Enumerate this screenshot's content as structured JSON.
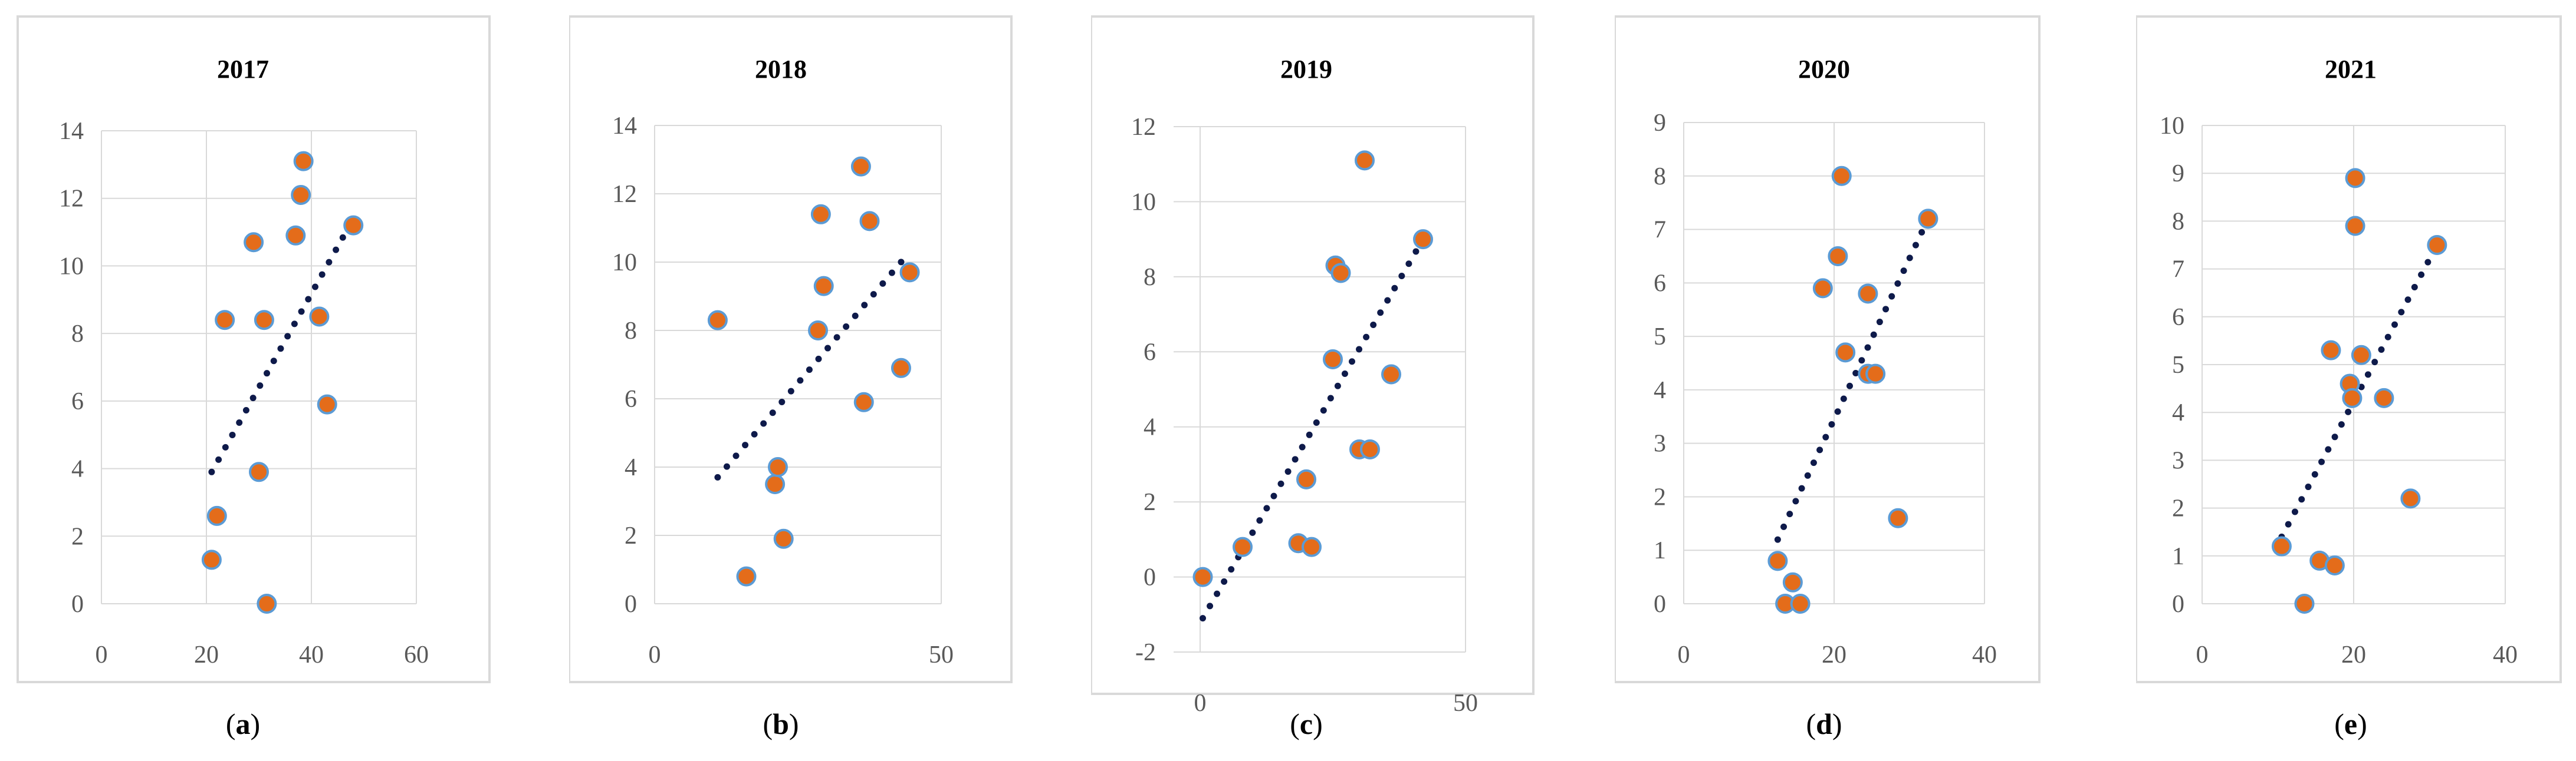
{
  "colors": {
    "point_fill": "#E46C1A",
    "point_stroke": "#5B9BD5",
    "trend": "#0E1A4A",
    "grid": "#D9D9D9",
    "frame": "#D9D9D9",
    "tick_text": "#595959"
  },
  "chart_data": [
    {
      "type": "scatter",
      "title": "2017",
      "caption": "a",
      "xlim": [
        0,
        60
      ],
      "xticks": [
        0,
        20,
        40,
        60
      ],
      "ylim": [
        0,
        14
      ],
      "yticks": [
        0,
        2,
        4,
        6,
        8,
        10,
        12,
        14
      ],
      "trendline": {
        "x": [
          21,
          48
        ],
        "y": [
          3.9,
          11.4
        ]
      },
      "points": [
        {
          "x": 21,
          "y": 1.3
        },
        {
          "x": 22,
          "y": 2.6
        },
        {
          "x": 23.5,
          "y": 8.4
        },
        {
          "x": 29,
          "y": 10.7
        },
        {
          "x": 30,
          "y": 3.9
        },
        {
          "x": 31,
          "y": 8.4
        },
        {
          "x": 31.5,
          "y": 0
        },
        {
          "x": 37,
          "y": 10.9
        },
        {
          "x": 38,
          "y": 12.1
        },
        {
          "x": 38.5,
          "y": 13.1
        },
        {
          "x": 41.5,
          "y": 8.5
        },
        {
          "x": 43,
          "y": 5.9
        },
        {
          "x": 48,
          "y": 11.2
        }
      ]
    },
    {
      "type": "scatter",
      "title": "2018",
      "caption": "b",
      "xlim": [
        0,
        50
      ],
      "xticks": [
        0,
        50
      ],
      "ylim": [
        0,
        14
      ],
      "yticks": [
        0,
        2,
        4,
        6,
        8,
        10,
        12,
        14
      ],
      "trendline": {
        "x": [
          11,
          44
        ],
        "y": [
          3.7,
          10.2
        ]
      },
      "points": [
        {
          "x": 11,
          "y": 8.3
        },
        {
          "x": 16,
          "y": 0.8
        },
        {
          "x": 21,
          "y": 3.5
        },
        {
          "x": 21.5,
          "y": 4.0
        },
        {
          "x": 22.5,
          "y": 1.9
        },
        {
          "x": 28.5,
          "y": 8.0
        },
        {
          "x": 29,
          "y": 11.4
        },
        {
          "x": 29.5,
          "y": 9.3
        },
        {
          "x": 36,
          "y": 12.8
        },
        {
          "x": 36.5,
          "y": 5.9
        },
        {
          "x": 37.5,
          "y": 11.2
        },
        {
          "x": 43,
          "y": 6.9
        },
        {
          "x": 44.5,
          "y": 9.7
        }
      ]
    },
    {
      "type": "scatter",
      "title": "2019",
      "caption": "c",
      "xlim": [
        -5,
        50
      ],
      "xticks": [
        0,
        50
      ],
      "ylim": [
        -2,
        12
      ],
      "yticks": [
        -2,
        0,
        2,
        4,
        6,
        8,
        10,
        12
      ],
      "trendline": {
        "x": [
          0.5,
          42
        ],
        "y": [
          -1.1,
          9.0
        ]
      },
      "points": [
        {
          "x": 0.5,
          "y": 0
        },
        {
          "x": 8,
          "y": 0.8
        },
        {
          "x": 18.5,
          "y": 0.9
        },
        {
          "x": 20,
          "y": 2.6
        },
        {
          "x": 21,
          "y": 0.8
        },
        {
          "x": 25,
          "y": 5.8
        },
        {
          "x": 25.5,
          "y": 8.3
        },
        {
          "x": 26.5,
          "y": 8.1
        },
        {
          "x": 30,
          "y": 3.4
        },
        {
          "x": 31,
          "y": 11.1
        },
        {
          "x": 32,
          "y": 3.4
        },
        {
          "x": 36,
          "y": 5.4
        },
        {
          "x": 42,
          "y": 9.0
        }
      ]
    },
    {
      "type": "scatter",
      "title": "2020",
      "caption": "d",
      "xlim": [
        0,
        40
      ],
      "xticks": [
        0,
        20,
        40
      ],
      "ylim": [
        0,
        9
      ],
      "yticks": [
        0,
        1,
        2,
        3,
        4,
        5,
        6,
        7,
        8,
        9
      ],
      "trendline": {
        "x": [
          12.5,
          32.5
        ],
        "y": [
          1.2,
          7.2
        ]
      },
      "points": [
        {
          "x": 12.5,
          "y": 0.8
        },
        {
          "x": 13.5,
          "y": 0
        },
        {
          "x": 14.5,
          "y": 0.4
        },
        {
          "x": 15.5,
          "y": 0
        },
        {
          "x": 18.5,
          "y": 5.9
        },
        {
          "x": 20.5,
          "y": 6.5
        },
        {
          "x": 21,
          "y": 8.0
        },
        {
          "x": 21.5,
          "y": 4.7
        },
        {
          "x": 24.5,
          "y": 5.8
        },
        {
          "x": 24.5,
          "y": 4.3
        },
        {
          "x": 25.5,
          "y": 4.3
        },
        {
          "x": 28.5,
          "y": 1.6
        },
        {
          "x": 32.5,
          "y": 7.2
        }
      ]
    },
    {
      "type": "scatter",
      "title": "2021",
      "caption": "e",
      "xlim": [
        0,
        40
      ],
      "xticks": [
        0,
        20,
        40
      ],
      "ylim": [
        0,
        10
      ],
      "yticks": [
        0,
        1,
        2,
        3,
        4,
        5,
        6,
        7,
        8,
        9,
        10
      ],
      "trendline": {
        "x": [
          10.5,
          31
        ],
        "y": [
          1.4,
          7.5
        ]
      },
      "points": [
        {
          "x": 10.5,
          "y": 1.2
        },
        {
          "x": 13.5,
          "y": 0
        },
        {
          "x": 15.5,
          "y": 0.9
        },
        {
          "x": 17,
          "y": 5.3
        },
        {
          "x": 17.5,
          "y": 0.8
        },
        {
          "x": 19.5,
          "y": 4.6
        },
        {
          "x": 19.8,
          "y": 4.3
        },
        {
          "x": 20.2,
          "y": 7.9
        },
        {
          "x": 20.2,
          "y": 8.9
        },
        {
          "x": 21,
          "y": 5.2
        },
        {
          "x": 24,
          "y": 4.3
        },
        {
          "x": 27.5,
          "y": 2.2
        },
        {
          "x": 31,
          "y": 7.5
        }
      ]
    }
  ]
}
